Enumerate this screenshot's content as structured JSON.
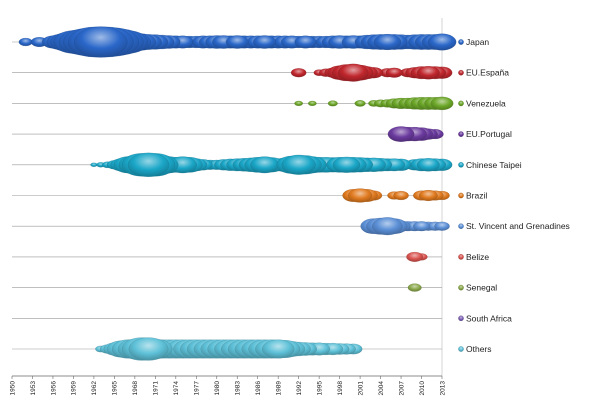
{
  "chart_data": {
    "type": "scatter",
    "subtype": "bubble-timeline",
    "title": "",
    "xlabel": "",
    "ylabel": "",
    "xlim": [
      1950,
      2013
    ],
    "x_ticks": [
      "1950",
      "1953",
      "1956",
      "1959",
      "1962",
      "1965",
      "1968",
      "1971",
      "1974",
      "1977",
      "1980",
      "1983",
      "1986",
      "1989",
      "1992",
      "1995",
      "1998",
      "2001",
      "2004",
      "2007",
      "2010",
      "2013"
    ],
    "legend_position": "right",
    "grid": false,
    "series": [
      {
        "name": "Japan",
        "color": "#2a67c9",
        "points": [
          {
            "x": 1952,
            "s": 0.08
          },
          {
            "x": 1954,
            "s": 0.12
          },
          {
            "x": 1956,
            "s": 0.2
          },
          {
            "x": 1957,
            "s": 0.3
          },
          {
            "x": 1958,
            "s": 0.45
          },
          {
            "x": 1959,
            "s": 0.55
          },
          {
            "x": 1960,
            "s": 0.65
          },
          {
            "x": 1961,
            "s": 0.8
          },
          {
            "x": 1962,
            "s": 0.95
          },
          {
            "x": 1963,
            "s": 1.0
          },
          {
            "x": 1964,
            "s": 0.95
          },
          {
            "x": 1965,
            "s": 0.85
          },
          {
            "x": 1966,
            "s": 0.7
          },
          {
            "x": 1967,
            "s": 0.55
          },
          {
            "x": 1968,
            "s": 0.45
          },
          {
            "x": 1969,
            "s": 0.35
          },
          {
            "x": 1970,
            "s": 0.3
          },
          {
            "x": 1971,
            "s": 0.28
          },
          {
            "x": 1972,
            "s": 0.25
          },
          {
            "x": 1973,
            "s": 0.22
          },
          {
            "x": 1974,
            "s": 0.2
          },
          {
            "x": 1975,
            "s": 0.2
          },
          {
            "x": 1976,
            "s": 0.18
          },
          {
            "x": 1977,
            "s": 0.18
          },
          {
            "x": 1978,
            "s": 0.2
          },
          {
            "x": 1979,
            "s": 0.2
          },
          {
            "x": 1980,
            "s": 0.22
          },
          {
            "x": 1981,
            "s": 0.22
          },
          {
            "x": 1982,
            "s": 0.2
          },
          {
            "x": 1983,
            "s": 0.22
          },
          {
            "x": 1984,
            "s": 0.2
          },
          {
            "x": 1985,
            "s": 0.2
          },
          {
            "x": 1986,
            "s": 0.2
          },
          {
            "x": 1987,
            "s": 0.22
          },
          {
            "x": 1988,
            "s": 0.2
          },
          {
            "x": 1989,
            "s": 0.2
          },
          {
            "x": 1990,
            "s": 0.2
          },
          {
            "x": 1991,
            "s": 0.2
          },
          {
            "x": 1992,
            "s": 0.18
          },
          {
            "x": 1993,
            "s": 0.2
          },
          {
            "x": 1994,
            "s": 0.18
          },
          {
            "x": 1995,
            "s": 0.18
          },
          {
            "x": 1996,
            "s": 0.18
          },
          {
            "x": 1997,
            "s": 0.2
          },
          {
            "x": 1998,
            "s": 0.22
          },
          {
            "x": 1999,
            "s": 0.2
          },
          {
            "x": 2000,
            "s": 0.22
          },
          {
            "x": 2001,
            "s": 0.2
          },
          {
            "x": 2002,
            "s": 0.25
          },
          {
            "x": 2003,
            "s": 0.28
          },
          {
            "x": 2004,
            "s": 0.3
          },
          {
            "x": 2005,
            "s": 0.32
          },
          {
            "x": 2006,
            "s": 0.3
          },
          {
            "x": 2007,
            "s": 0.28
          },
          {
            "x": 2008,
            "s": 0.25
          },
          {
            "x": 2009,
            "s": 0.28
          },
          {
            "x": 2010,
            "s": 0.3
          },
          {
            "x": 2011,
            "s": 0.3
          },
          {
            "x": 2012,
            "s": 0.3
          },
          {
            "x": 2013,
            "s": 0.35
          }
        ]
      },
      {
        "name": "EU.España",
        "color": "#c0272d",
        "points": [
          {
            "x": 1992,
            "s": 0.1
          },
          {
            "x": 1995,
            "s": 0.05
          },
          {
            "x": 1996,
            "s": 0.08
          },
          {
            "x": 1997,
            "s": 0.12
          },
          {
            "x": 1998,
            "s": 0.25
          },
          {
            "x": 1999,
            "s": 0.35
          },
          {
            "x": 2000,
            "s": 0.4
          },
          {
            "x": 2001,
            "s": 0.3
          },
          {
            "x": 2002,
            "s": 0.2
          },
          {
            "x": 2003,
            "s": 0.15
          },
          {
            "x": 2005,
            "s": 0.1
          },
          {
            "x": 2006,
            "s": 0.12
          },
          {
            "x": 2008,
            "s": 0.1
          },
          {
            "x": 2009,
            "s": 0.15
          },
          {
            "x": 2010,
            "s": 0.2
          },
          {
            "x": 2011,
            "s": 0.22
          },
          {
            "x": 2012,
            "s": 0.2
          },
          {
            "x": 2013,
            "s": 0.18
          }
        ]
      },
      {
        "name": "Venezuela",
        "color": "#6ca728",
        "points": [
          {
            "x": 1992,
            "s": 0.03
          },
          {
            "x": 1994,
            "s": 0.03
          },
          {
            "x": 1997,
            "s": 0.04
          },
          {
            "x": 2001,
            "s": 0.05
          },
          {
            "x": 2003,
            "s": 0.05
          },
          {
            "x": 2004,
            "s": 0.07
          },
          {
            "x": 2005,
            "s": 0.08
          },
          {
            "x": 2006,
            "s": 0.12
          },
          {
            "x": 2007,
            "s": 0.15
          },
          {
            "x": 2008,
            "s": 0.15
          },
          {
            "x": 2009,
            "s": 0.18
          },
          {
            "x": 2010,
            "s": 0.2
          },
          {
            "x": 2011,
            "s": 0.2
          },
          {
            "x": 2012,
            "s": 0.2
          },
          {
            "x": 2013,
            "s": 0.22
          }
        ]
      },
      {
        "name": "EU.Portugal",
        "color": "#6a3a9e",
        "points": [
          {
            "x": 2007,
            "s": 0.3
          },
          {
            "x": 2008,
            "s": 0.25
          },
          {
            "x": 2009,
            "s": 0.25
          },
          {
            "x": 2010,
            "s": 0.22
          },
          {
            "x": 2011,
            "s": 0.15
          },
          {
            "x": 2012,
            "s": 0.12
          }
        ]
      },
      {
        "name": "Chinese Taipei",
        "color": "#1ba7c8",
        "points": [
          {
            "x": 1962,
            "s": 0.02
          },
          {
            "x": 1963,
            "s": 0.03
          },
          {
            "x": 1964,
            "s": 0.05
          },
          {
            "x": 1965,
            "s": 0.1
          },
          {
            "x": 1966,
            "s": 0.2
          },
          {
            "x": 1967,
            "s": 0.35
          },
          {
            "x": 1968,
            "s": 0.45
          },
          {
            "x": 1969,
            "s": 0.55
          },
          {
            "x": 1970,
            "s": 0.6
          },
          {
            "x": 1971,
            "s": 0.55
          },
          {
            "x": 1972,
            "s": 0.45
          },
          {
            "x": 1973,
            "s": 0.35
          },
          {
            "x": 1974,
            "s": 0.3
          },
          {
            "x": 1975,
            "s": 0.35
          },
          {
            "x": 1976,
            "s": 0.3
          },
          {
            "x": 1977,
            "s": 0.2
          },
          {
            "x": 1978,
            "s": 0.15
          },
          {
            "x": 1979,
            "s": 0.12
          },
          {
            "x": 1980,
            "s": 0.12
          },
          {
            "x": 1981,
            "s": 0.15
          },
          {
            "x": 1982,
            "s": 0.18
          },
          {
            "x": 1983,
            "s": 0.2
          },
          {
            "x": 1984,
            "s": 0.22
          },
          {
            "x": 1985,
            "s": 0.25
          },
          {
            "x": 1986,
            "s": 0.3
          },
          {
            "x": 1987,
            "s": 0.35
          },
          {
            "x": 1988,
            "s": 0.28
          },
          {
            "x": 1989,
            "s": 0.2
          },
          {
            "x": 1990,
            "s": 0.25
          },
          {
            "x": 1991,
            "s": 0.4
          },
          {
            "x": 1992,
            "s": 0.5
          },
          {
            "x": 1993,
            "s": 0.45
          },
          {
            "x": 1994,
            "s": 0.35
          },
          {
            "x": 1995,
            "s": 0.3
          },
          {
            "x": 1996,
            "s": 0.3
          },
          {
            "x": 1997,
            "s": 0.28
          },
          {
            "x": 1998,
            "s": 0.3
          },
          {
            "x": 1999,
            "s": 0.32
          },
          {
            "x": 2000,
            "s": 0.3
          },
          {
            "x": 2001,
            "s": 0.28
          },
          {
            "x": 2002,
            "s": 0.25
          },
          {
            "x": 2003,
            "s": 0.25
          },
          {
            "x": 2004,
            "s": 0.22
          },
          {
            "x": 2005,
            "s": 0.2
          },
          {
            "x": 2006,
            "s": 0.2
          },
          {
            "x": 2007,
            "s": 0.18
          },
          {
            "x": 2009,
            "s": 0.15
          },
          {
            "x": 2010,
            "s": 0.2
          },
          {
            "x": 2011,
            "s": 0.22
          },
          {
            "x": 2012,
            "s": 0.2
          },
          {
            "x": 2013,
            "s": 0.18
          }
        ]
      },
      {
        "name": "Brazil",
        "color": "#e07a1f",
        "points": [
          {
            "x": 2000,
            "s": 0.2
          },
          {
            "x": 2001,
            "s": 0.25
          },
          {
            "x": 2002,
            "s": 0.2
          },
          {
            "x": 2003,
            "s": 0.12
          },
          {
            "x": 2006,
            "s": 0.08
          },
          {
            "x": 2007,
            "s": 0.1
          },
          {
            "x": 2010,
            "s": 0.12
          },
          {
            "x": 2011,
            "s": 0.15
          },
          {
            "x": 2012,
            "s": 0.12
          },
          {
            "x": 2013,
            "s": 0.1
          }
        ]
      },
      {
        "name": "St. Vincent and Grenadines",
        "color": "#5b8fd6",
        "points": [
          {
            "x": 2003,
            "s": 0.3
          },
          {
            "x": 2004,
            "s": 0.35
          },
          {
            "x": 2005,
            "s": 0.4
          },
          {
            "x": 2006,
            "s": 0.3
          },
          {
            "x": 2007,
            "s": 0.15
          },
          {
            "x": 2008,
            "s": 0.12
          },
          {
            "x": 2009,
            "s": 0.12
          },
          {
            "x": 2010,
            "s": 0.12
          },
          {
            "x": 2011,
            "s": 0.1
          },
          {
            "x": 2012,
            "s": 0.1
          },
          {
            "x": 2013,
            "s": 0.1
          }
        ]
      },
      {
        "name": "Belize",
        "color": "#d9534f",
        "points": [
          {
            "x": 2009,
            "s": 0.12
          },
          {
            "x": 2010,
            "s": 0.06
          }
        ]
      },
      {
        "name": "Senegal",
        "color": "#8aa84a",
        "points": [
          {
            "x": 2009,
            "s": 0.08
          }
        ]
      },
      {
        "name": "South Africa",
        "color": "#7c5fb5",
        "points": []
      },
      {
        "name": "Others",
        "color": "#5ec1d8",
        "points": [
          {
            "x": 1963,
            "s": 0.05
          },
          {
            "x": 1964,
            "s": 0.1
          },
          {
            "x": 1965,
            "s": 0.2
          },
          {
            "x": 1966,
            "s": 0.35
          },
          {
            "x": 1967,
            "s": 0.45
          },
          {
            "x": 1968,
            "s": 0.5
          },
          {
            "x": 1969,
            "s": 0.55
          },
          {
            "x": 1970,
            "s": 0.55
          },
          {
            "x": 1971,
            "s": 0.5
          },
          {
            "x": 1972,
            "s": 0.45
          },
          {
            "x": 1973,
            "s": 0.45
          },
          {
            "x": 1974,
            "s": 0.45
          },
          {
            "x": 1975,
            "s": 0.45
          },
          {
            "x": 1976,
            "s": 0.45
          },
          {
            "x": 1977,
            "s": 0.45
          },
          {
            "x": 1978,
            "s": 0.45
          },
          {
            "x": 1979,
            "s": 0.45
          },
          {
            "x": 1980,
            "s": 0.45
          },
          {
            "x": 1981,
            "s": 0.45
          },
          {
            "x": 1982,
            "s": 0.45
          },
          {
            "x": 1983,
            "s": 0.45
          },
          {
            "x": 1984,
            "s": 0.45
          },
          {
            "x": 1985,
            "s": 0.45
          },
          {
            "x": 1986,
            "s": 0.45
          },
          {
            "x": 1987,
            "s": 0.45
          },
          {
            "x": 1988,
            "s": 0.45
          },
          {
            "x": 1989,
            "s": 0.45
          },
          {
            "x": 1990,
            "s": 0.4
          },
          {
            "x": 1991,
            "s": 0.3
          },
          {
            "x": 1992,
            "s": 0.25
          },
          {
            "x": 1993,
            "s": 0.22
          },
          {
            "x": 1994,
            "s": 0.2
          },
          {
            "x": 1995,
            "s": 0.2
          },
          {
            "x": 1996,
            "s": 0.18
          },
          {
            "x": 1997,
            "s": 0.18
          },
          {
            "x": 1998,
            "s": 0.16
          },
          {
            "x": 1999,
            "s": 0.15
          },
          {
            "x": 2000,
            "s": 0.14
          }
        ]
      }
    ]
  }
}
